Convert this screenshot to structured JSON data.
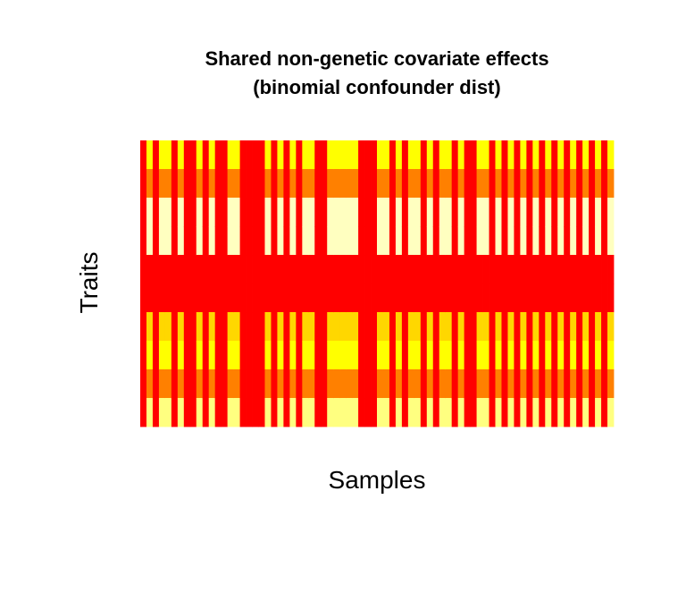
{
  "chart_data": {
    "type": "heatmap",
    "title_line1": "Shared non-genetic covariate effects",
    "title_line2": "(binomial confounder dist)",
    "xlabel": "Samples",
    "ylabel": "Traits",
    "grid": false,
    "legend": "none",
    "colors": {
      "0": "#FF0000",
      "1": "#FF8000",
      "2": "#FFFF00",
      "3": "#FFD700",
      "4": "#FFFFC0",
      "5": "#FFFF80"
    },
    "column_pattern": [
      0,
      1,
      0,
      1,
      1,
      0,
      1,
      0,
      0,
      1,
      0,
      1,
      0,
      0,
      1,
      1,
      0,
      0,
      0,
      0,
      1,
      0,
      1,
      0,
      1,
      0,
      1,
      1,
      0,
      0,
      1,
      1,
      1,
      1,
      1,
      0,
      0,
      0,
      1,
      1,
      0,
      1,
      0,
      1,
      1,
      0,
      1,
      0,
      1,
      1,
      0,
      1,
      0,
      0,
      1,
      1,
      0,
      1,
      0,
      1,
      0,
      1,
      0,
      1,
      0,
      1,
      0,
      1,
      0,
      1,
      0,
      1,
      0,
      1,
      0,
      1
    ],
    "row_pattern_when_variable": [
      2,
      1,
      4,
      4,
      0,
      0,
      3,
      2,
      1,
      5
    ],
    "row_pattern_when_red": [
      0,
      0,
      0,
      0,
      0,
      0,
      0,
      0,
      0,
      0
    ],
    "n_samples": 76,
    "n_traits": 10
  }
}
